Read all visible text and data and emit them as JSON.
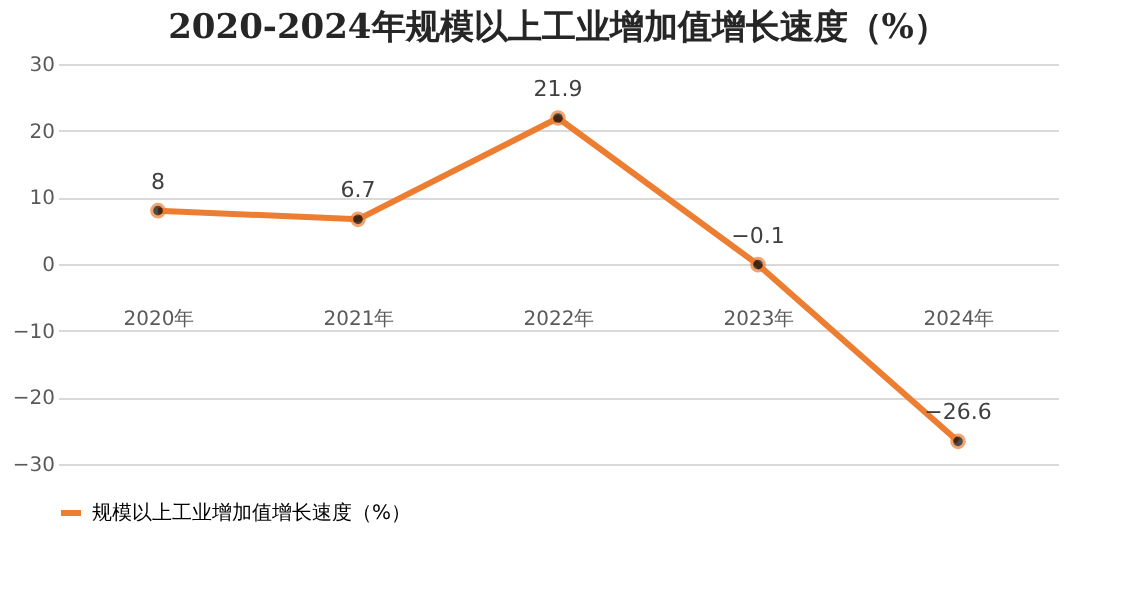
{
  "chart_data": {
    "type": "line",
    "title": "2020-2024年规模以上工业增加值增长速度（%）",
    "categories": [
      "2020年",
      "2021年",
      "2022年",
      "2023年",
      "2024年"
    ],
    "series": [
      {
        "name": "规模以上工业增加值增长速度（%）",
        "color": "#ed7d31",
        "values": [
          8,
          6.7,
          21.9,
          -0.1,
          -26.6
        ]
      }
    ],
    "ylim": [
      -30,
      30
    ],
    "yticks": [
      -30,
      -20,
      -10,
      0,
      10,
      20,
      30
    ],
    "grid": "y",
    "legend": "bottom",
    "marker": "circle",
    "line_style": "solid",
    "data_labels": true
  }
}
